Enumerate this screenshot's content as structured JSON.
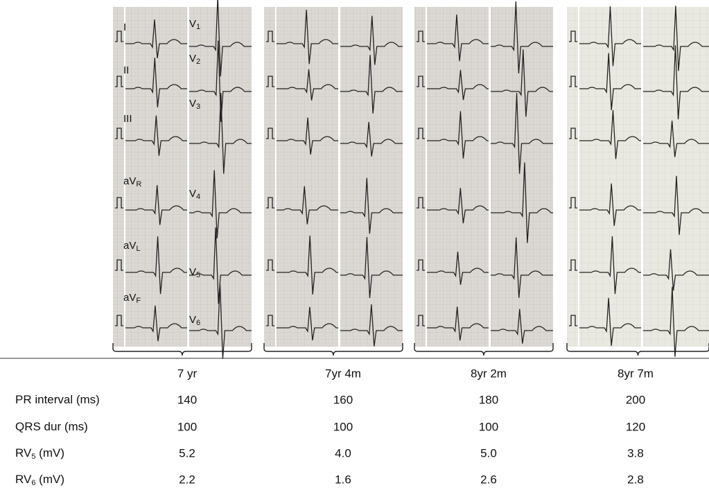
{
  "leads": {
    "limb": [
      {
        "main": "I"
      },
      {
        "main": "II"
      },
      {
        "main": "III"
      },
      {
        "main": "aV",
        "sub": "R"
      },
      {
        "main": "aV",
        "sub": "L"
      },
      {
        "main": "aV",
        "sub": "F"
      }
    ],
    "precordial": [
      {
        "main": "V",
        "sub": "1"
      },
      {
        "main": "V",
        "sub": "2"
      },
      {
        "main": "V",
        "sub": "3"
      },
      {
        "main": "V",
        "sub": "4"
      },
      {
        "main": "V",
        "sub": "5"
      },
      {
        "main": "V",
        "sub": "6"
      }
    ]
  },
  "table": {
    "columns": [
      "7 yr",
      "7yr 4m",
      "8yr 2m",
      "8yr 7m"
    ],
    "rows": [
      {
        "label": {
          "main": "PR interval (ms)"
        },
        "cells": [
          "140",
          "160",
          "180",
          "200"
        ]
      },
      {
        "label": {
          "main": "QRS dur (ms)"
        },
        "cells": [
          "100",
          "100",
          "100",
          "120"
        ]
      },
      {
        "label": {
          "main": "RV",
          "sub": "5",
          "tail": " (mV)"
        },
        "cells": [
          "5.2",
          "4.0",
          "5.0",
          "3.8"
        ]
      },
      {
        "label": {
          "main": "RV",
          "sub": "6",
          "tail": " (mV)"
        },
        "cells": [
          "2.2",
          "1.6",
          "2.6",
          "2.8"
        ]
      }
    ]
  }
}
